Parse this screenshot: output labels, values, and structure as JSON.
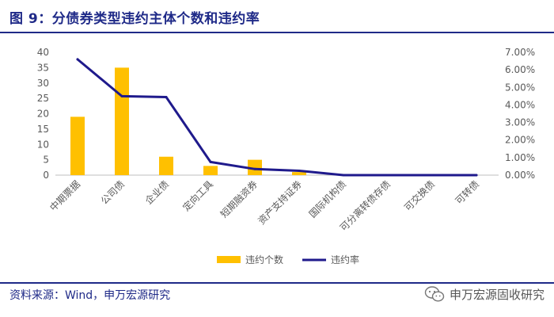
{
  "header": {
    "title": "图 9：分债券类型违约主体个数和违约率"
  },
  "footer": {
    "source": "资料来源：Wind，申万宏源研究",
    "brand": "申万宏源固收研究",
    "brand_icon": "wechat-icon"
  },
  "colors": {
    "bar": "#FFC000",
    "line": "#1F1A8C",
    "text": "#595959",
    "accent": "#1f2a88"
  },
  "chart_data": {
    "type": "bar",
    "title": "",
    "xlabel": "",
    "ylabel": "",
    "categories": [
      "中期票据",
      "公司债",
      "企业债",
      "定向工具",
      "短期融资券",
      "资产支持证券",
      "国际机构债",
      "可分离转债存债",
      "可交换债",
      "可转债"
    ],
    "ylim": [
      0,
      40
    ],
    "y_ticks": [
      "0",
      "5",
      "10",
      "15",
      "20",
      "25",
      "30",
      "35",
      "40"
    ],
    "y2lim": [
      0,
      0.07
    ],
    "y2_ticks": [
      "0.00%",
      "1.00%",
      "2.00%",
      "3.00%",
      "4.00%",
      "5.00%",
      "6.00%",
      "7.00%"
    ],
    "legend_position": "bottom",
    "grid": false,
    "series": [
      {
        "name": "违约个数",
        "type": "bar",
        "axis": "left",
        "values": [
          19,
          35,
          6,
          3,
          5,
          1,
          0,
          0,
          0,
          0
        ]
      },
      {
        "name": "违约率",
        "type": "line",
        "axis": "right",
        "values": [
          0.066,
          0.045,
          0.0445,
          0.0075,
          0.0035,
          0.0025,
          0,
          0,
          0,
          0
        ]
      }
    ]
  }
}
